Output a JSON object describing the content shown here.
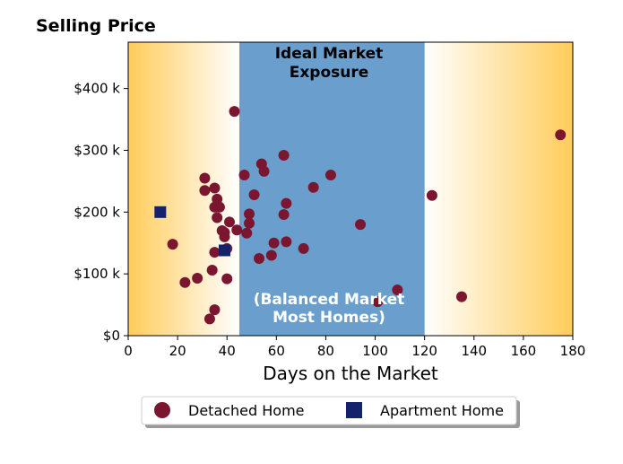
{
  "chart_data": {
    "type": "scatter",
    "title": "Selling Price",
    "xlabel": "Days on the Market",
    "ylabel": "",
    "xlim": [
      0,
      180
    ],
    "ylim": [
      0,
      475000
    ],
    "x_ticks": [
      0,
      20,
      40,
      60,
      80,
      100,
      120,
      140,
      160,
      180
    ],
    "x_tick_labels": [
      "0",
      "20",
      "40",
      "60",
      "80",
      "100",
      "120",
      "140",
      "160",
      "180"
    ],
    "y_ticks": [
      0,
      100000,
      200000,
      300000,
      400000
    ],
    "y_tick_labels": [
      "$0",
      "$100 k",
      "$200 k",
      "$300 k",
      "$400 k"
    ],
    "grid": false,
    "legend_position": "bottom-center",
    "annotations": {
      "ideal_band": {
        "x_range": [
          45,
          120
        ],
        "label_line1": "Ideal Market",
        "label_line2": "Exposure",
        "color": "#6a9fcd"
      },
      "balanced_label_line1": "(Balanced Market",
      "balanced_label_line2": "Most Homes)",
      "gradient_color": "#ffcc5a"
    },
    "series": [
      {
        "name": "Detached Home",
        "marker": "circle",
        "color": "#7b1631",
        "points": [
          [
            18,
            148000
          ],
          [
            23,
            86000
          ],
          [
            28,
            93000
          ],
          [
            31,
            255000
          ],
          [
            31,
            235000
          ],
          [
            33,
            27000
          ],
          [
            34,
            106000
          ],
          [
            35,
            239000
          ],
          [
            35,
            42000
          ],
          [
            35,
            135000
          ],
          [
            35,
            208000
          ],
          [
            36,
            221000
          ],
          [
            36,
            191000
          ],
          [
            37,
            208000
          ],
          [
            38,
            170000
          ],
          [
            39,
            160000
          ],
          [
            39,
            167000
          ],
          [
            40,
            92000
          ],
          [
            40,
            141000
          ],
          [
            41,
            184000
          ],
          [
            43,
            363000
          ],
          [
            44,
            171000
          ],
          [
            47,
            260000
          ],
          [
            48,
            166000
          ],
          [
            49,
            197000
          ],
          [
            49,
            182000
          ],
          [
            51,
            228000
          ],
          [
            53,
            125000
          ],
          [
            54,
            278000
          ],
          [
            55,
            266000
          ],
          [
            58,
            130000
          ],
          [
            59,
            150000
          ],
          [
            63,
            292000
          ],
          [
            63,
            196000
          ],
          [
            64,
            214000
          ],
          [
            64,
            152000
          ],
          [
            71,
            141000
          ],
          [
            75,
            240000
          ],
          [
            82,
            260000
          ],
          [
            94,
            180000
          ],
          [
            101,
            55000
          ],
          [
            109,
            74000
          ],
          [
            123,
            227000
          ],
          [
            135,
            63000
          ],
          [
            175,
            325000
          ]
        ]
      },
      {
        "name": "Apartment Home",
        "marker": "square",
        "color": "#13226a",
        "points": [
          [
            13,
            200000
          ],
          [
            39,
            138000
          ]
        ]
      }
    ]
  }
}
